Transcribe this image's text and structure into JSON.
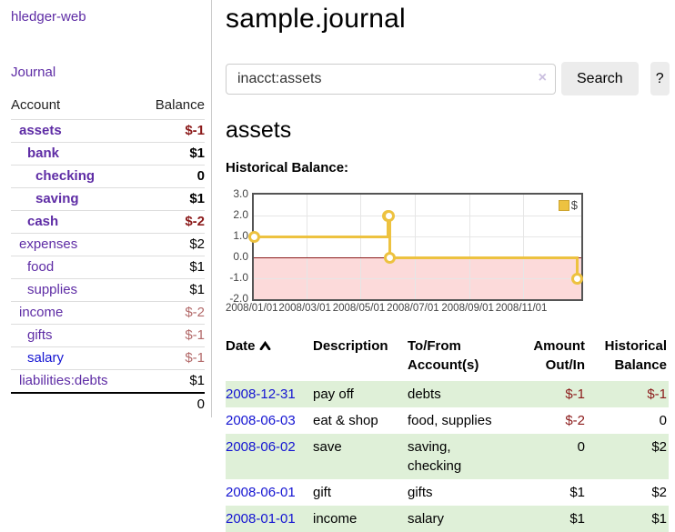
{
  "sidebar": {
    "brand": "hledger-web",
    "nav_journal": "Journal",
    "accounts_table": {
      "col_account": "Account",
      "col_balance": "Balance",
      "rows": [
        {
          "account": "assets",
          "indent": 1,
          "bold": true,
          "balance": "$-1",
          "balance_class": "neg-strong"
        },
        {
          "account": "bank",
          "indent": 2,
          "bold": true,
          "balance": "$1",
          "balance_class": ""
        },
        {
          "account": "checking",
          "indent": 3,
          "bold": true,
          "balance": "0",
          "balance_class": ""
        },
        {
          "account": "saving",
          "indent": 3,
          "bold": true,
          "balance": "$1",
          "balance_class": ""
        },
        {
          "account": "cash",
          "indent": 2,
          "bold": true,
          "balance": "$-2",
          "balance_class": "neg-strong"
        },
        {
          "account": "expenses",
          "indent": 1,
          "bold": false,
          "balance": "$2",
          "balance_class": ""
        },
        {
          "account": "food",
          "indent": 2,
          "bold": false,
          "balance": "$1",
          "balance_class": ""
        },
        {
          "account": "supplies",
          "indent": 2,
          "bold": false,
          "balance": "$1",
          "balance_class": ""
        },
        {
          "account": "income",
          "indent": 1,
          "bold": false,
          "balance": "$-2",
          "balance_class": "neg-soft"
        },
        {
          "account": "gifts",
          "indent": 2,
          "bold": false,
          "balance": "$-1",
          "balance_class": "neg-soft"
        },
        {
          "account": "salary",
          "indent": 2,
          "bold": false,
          "blue": true,
          "balance": "$-1",
          "balance_class": "neg-soft"
        },
        {
          "account": "liabilities:debts",
          "indent": 1,
          "bold": false,
          "balance": "$1",
          "balance_class": ""
        }
      ],
      "total": "0"
    }
  },
  "main": {
    "title": "sample.journal",
    "search": {
      "value": "inacct:assets",
      "clear_icon": "×",
      "search_label": "Search",
      "help_label": "?"
    },
    "account_heading": "assets",
    "chart_label": "Historical Balance:"
  },
  "chart_data": {
    "type": "line",
    "step": true,
    "title": "Historical Balance (assets)",
    "x": [
      "2008-01-01",
      "2008-06-01",
      "2008-06-02",
      "2008-06-03",
      "2008-12-31"
    ],
    "series": [
      {
        "name": "$",
        "values": [
          1,
          2,
          2,
          0,
          -1
        ]
      }
    ],
    "ylim": [
      -2,
      3
    ],
    "y_ticks": [
      3,
      2,
      1,
      0,
      -1,
      -2
    ],
    "x_ticks": [
      "2008-01-01",
      "2008-03-01",
      "2008-05-01",
      "2008-07-01",
      "2008-09-01",
      "2008-11-01"
    ],
    "x_tick_labels": [
      "2008/01/01",
      "2008/03/01",
      "2008/05/01",
      "2008/07/01",
      "2008/09/01",
      "2008/11/01"
    ],
    "xmin": "2008-01-01",
    "xmax_days": 370,
    "grid": true,
    "legend_position": "top-right",
    "legend": [
      {
        "label": "$",
        "color": "#edc240"
      }
    ],
    "line_color": "#edc240",
    "negative_region_color": "#fcdada",
    "zero_line_color": "#8b1a1a"
  },
  "register": {
    "headers": {
      "date": "Date",
      "sort_icon": "chevron-up",
      "description": "Description",
      "accounts": "To/From Account(s)",
      "amount": "Amount Out/In",
      "balance": "Historical Balance"
    },
    "rows": [
      {
        "date": "2008-12-31",
        "description": "pay off",
        "accounts": "debts",
        "amount": "$-1",
        "amount_neg": true,
        "balance": "$-1",
        "balance_neg": true
      },
      {
        "date": "2008-06-03",
        "description": "eat & shop",
        "accounts": "food, supplies",
        "amount": "$-2",
        "amount_neg": true,
        "balance": "0",
        "balance_neg": false
      },
      {
        "date": "2008-06-02",
        "description": "save",
        "accounts": "saving, checking",
        "amount": "0",
        "amount_neg": false,
        "balance": "$2",
        "balance_neg": false
      },
      {
        "date": "2008-06-01",
        "description": "gift",
        "accounts": "gifts",
        "amount": "$1",
        "amount_neg": false,
        "balance": "$2",
        "balance_neg": false
      },
      {
        "date": "2008-01-01",
        "description": "income",
        "accounts": "salary",
        "amount": "$1",
        "amount_neg": false,
        "balance": "$1",
        "balance_neg": false
      }
    ]
  }
}
